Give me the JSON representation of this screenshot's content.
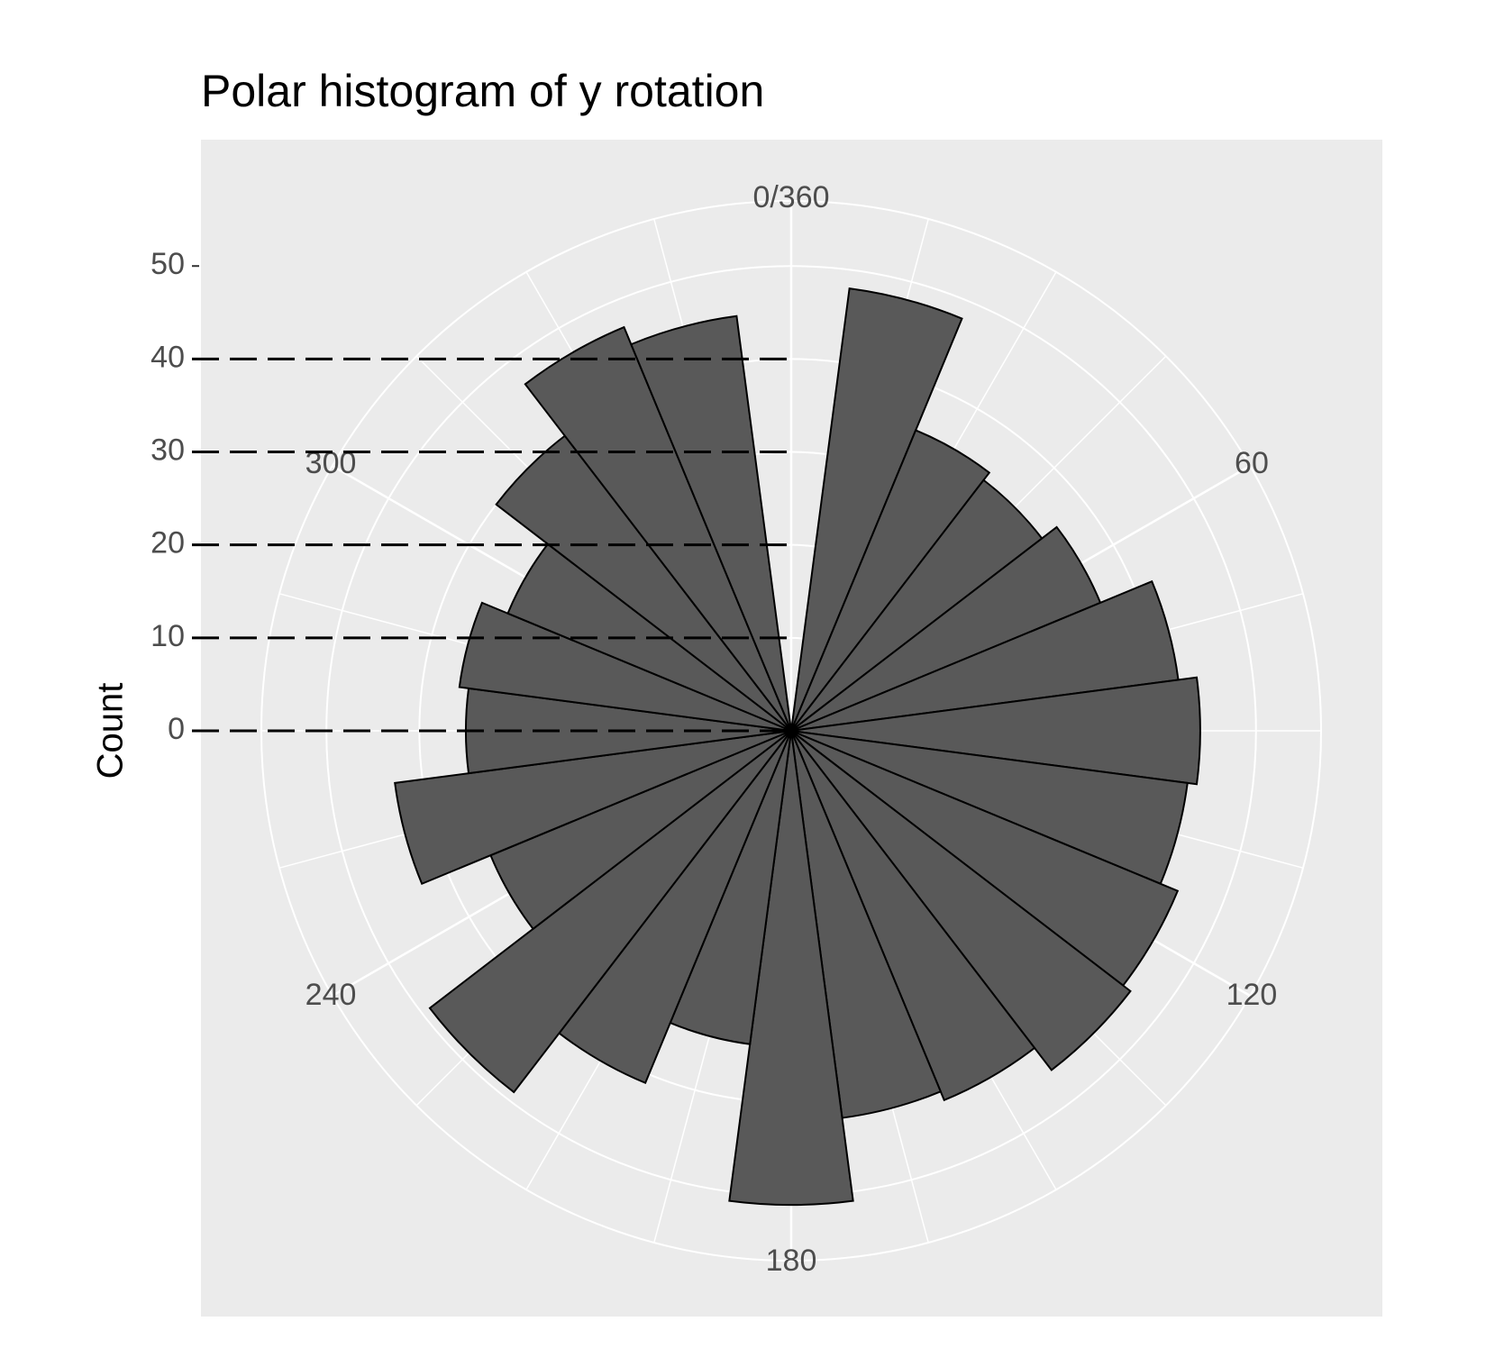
{
  "chart_data": {
    "type": "polar_histogram",
    "title": "Polar histogram of y rotation",
    "y_label": "Count",
    "bins": [
      -7.5,
      7.5,
      22.5,
      37.5,
      52.5,
      67.5,
      82.5,
      97.5,
      112.5,
      127.5,
      142.5,
      157.5,
      172.5,
      187.5,
      202.5,
      217.5,
      232.5,
      247.5,
      262.5,
      277.5,
      292.5,
      307.5,
      322.5,
      337.5,
      352.5
    ],
    "values": [
      0,
      48,
      35,
      34,
      36,
      42,
      44,
      43,
      45,
      46,
      43,
      42,
      51,
      34,
      41,
      49,
      35,
      43,
      35,
      36,
      33,
      40,
      47,
      45
    ],
    "color": "#595959",
    "xlim": [
      -7.5,
      352.5
    ],
    "xticks": [
      {
        "value": 0,
        "label": "0/360"
      },
      60,
      120,
      180,
      240,
      300
    ],
    "x_minor_grid": [
      15,
      30,
      45,
      75,
      90,
      105,
      135,
      150,
      165,
      195,
      210,
      225,
      255,
      270,
      285,
      315,
      330,
      345
    ],
    "ylim": [
      0,
      57
    ],
    "yticks": [
      0,
      10,
      20,
      30,
      40,
      50
    ],
    "reference_lines": [
      0,
      10,
      20,
      30,
      40
    ],
    "grid": true
  }
}
